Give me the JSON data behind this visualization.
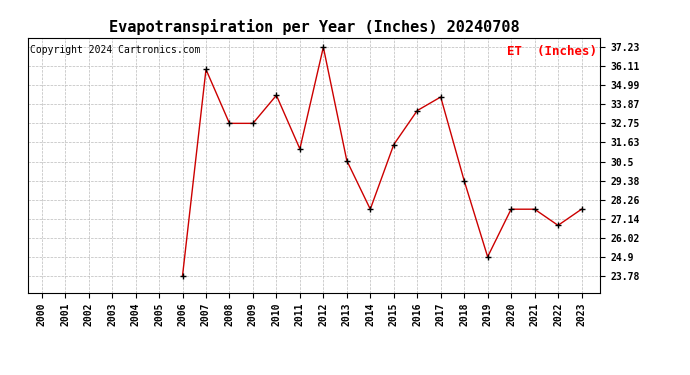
{
  "title": "Evapotranspiration per Year (Inches) 20240708",
  "legend_label": "ET  (Inches)",
  "copyright_text": "Copyright 2024 Cartronics.com",
  "years": [
    2000,
    2001,
    2002,
    2003,
    2004,
    2005,
    2006,
    2007,
    2008,
    2009,
    2010,
    2011,
    2012,
    2013,
    2014,
    2015,
    2016,
    2017,
    2018,
    2019,
    2020,
    2021,
    2022,
    2023
  ],
  "values": [
    null,
    null,
    null,
    null,
    null,
    null,
    23.78,
    35.92,
    32.75,
    32.75,
    34.4,
    31.25,
    37.23,
    30.56,
    27.7,
    31.5,
    33.5,
    34.3,
    29.38,
    24.9,
    27.7,
    27.7,
    26.75,
    27.7
  ],
  "line_color": "#cc0000",
  "marker_color": "#000000",
  "background_color": "#ffffff",
  "grid_color": "#bbbbbb",
  "yticks": [
    23.78,
    24.9,
    26.02,
    27.14,
    28.26,
    29.38,
    30.5,
    31.63,
    32.75,
    33.87,
    34.99,
    36.11,
    37.23
  ],
  "ylim": [
    22.8,
    37.8
  ],
  "title_fontsize": 11,
  "legend_fontsize": 9,
  "copyright_fontsize": 7
}
